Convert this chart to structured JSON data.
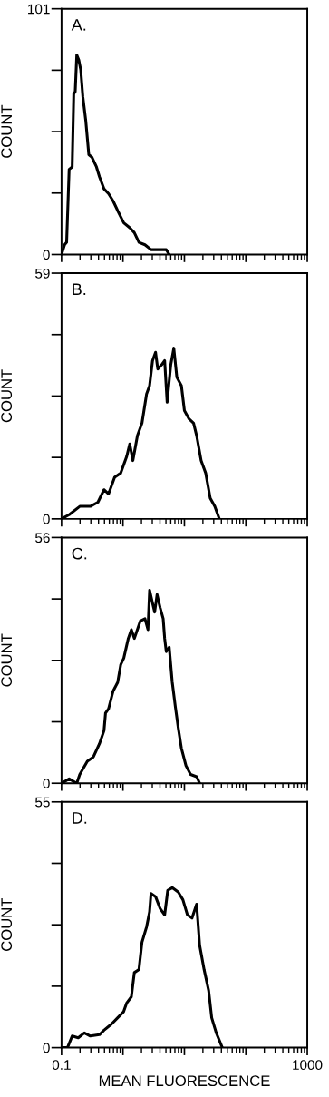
{
  "chart_data": [
    {
      "type": "line",
      "annotations": [
        "A."
      ],
      "ylabel": "COUNT",
      "log": "x",
      "xlim": [
        0.1,
        1000
      ],
      "xticks": [
        {
          "value": 0.1,
          "label": null
        },
        {
          "value": 1,
          "label": null
        },
        {
          "value": 10,
          "label": null
        },
        {
          "value": 100,
          "label": null
        },
        {
          "value": 1000,
          "label": null
        }
      ],
      "ylim": [
        0,
        101
      ],
      "yticks": [
        0,
        {
          "value": 25.25,
          "label": null
        },
        {
          "value": 50.5,
          "label": null
        },
        {
          "value": 75.75,
          "label": null
        },
        101
      ],
      "tick_labels": "y",
      "marker": "none",
      "line_style": "solid",
      "grid": false,
      "legend": false,
      "series": [
        {
          "color": "#000000",
          "x": [
            0.1,
            0.112,
            0.121,
            0.133,
            0.149,
            0.158,
            0.167,
            0.177,
            0.191,
            0.205,
            0.222,
            0.248,
            0.278,
            0.312,
            0.37,
            0.414,
            0.491,
            0.583,
            0.691,
            0.82,
            1.03,
            1.29,
            1.53,
            1.82,
            2.28,
            2.86,
            5.06,
            5.66
          ],
          "values": [
            0,
            4,
            5,
            35,
            36,
            66,
            67,
            82,
            80,
            76,
            65,
            55,
            41,
            40,
            36,
            32,
            27,
            25,
            22,
            18,
            13,
            11,
            9,
            5,
            4,
            2,
            2,
            0
          ]
        }
      ]
    },
    {
      "type": "line",
      "annotations": [
        "B."
      ],
      "ylabel": "COUNT",
      "log": "x",
      "xlim": [
        0.1,
        1000
      ],
      "xticks": [
        {
          "value": 0.1,
          "label": null
        },
        {
          "value": 1,
          "label": null
        },
        {
          "value": 10,
          "label": null
        },
        {
          "value": 100,
          "label": null
        },
        {
          "value": 1000,
          "label": null
        }
      ],
      "ylim": [
        0,
        59
      ],
      "yticks": [
        0,
        {
          "value": 14.75,
          "label": null
        },
        {
          "value": 29.5,
          "label": null
        },
        {
          "value": 44.25,
          "label": null
        },
        59
      ],
      "tick_labels": "y",
      "marker": "none",
      "line_style": "solid",
      "grid": false,
      "legend": false,
      "series": [
        {
          "color": "#000000",
          "x": [
            0.1,
            0.133,
            0.198,
            0.294,
            0.391,
            0.491,
            0.583,
            0.731,
            0.918,
            1.15,
            1.29,
            1.45,
            1.72,
            2.04,
            2.42,
            2.71,
            3.03,
            3.39,
            3.68,
            4.26,
            4.77,
            5.23,
            6.0,
            6.72,
            7.53,
            8.93,
            10.0,
            11.9,
            14.1,
            15.8,
            18.7,
            22.2,
            26.3,
            31.2,
            37.0
          ],
          "values": [
            0,
            1,
            3,
            3,
            4,
            7,
            6,
            10,
            11,
            15,
            18,
            14,
            20,
            23,
            30,
            32,
            38,
            40,
            36,
            37,
            38,
            28,
            37,
            41,
            34,
            32,
            26,
            24,
            23,
            20,
            14,
            11,
            5,
            3,
            0
          ]
        }
      ]
    },
    {
      "type": "line",
      "annotations": [
        "C."
      ],
      "ylabel": "COUNT",
      "log": "x",
      "xlim": [
        0.1,
        1000
      ],
      "xticks": [
        {
          "value": 0.1,
          "label": null
        },
        {
          "value": 1,
          "label": null
        },
        {
          "value": 10,
          "label": null
        },
        {
          "value": 100,
          "label": null
        },
        {
          "value": 1000,
          "label": null
        }
      ],
      "ylim": [
        0,
        56
      ],
      "yticks": [
        0,
        {
          "value": 14,
          "label": null
        },
        {
          "value": 28,
          "label": null
        },
        {
          "value": 42,
          "label": null
        },
        56
      ],
      "tick_labels": "y",
      "marker": "none",
      "line_style": "solid",
      "grid": false,
      "legend": false,
      "series": [
        {
          "color": "#000000",
          "x": [
            0.1,
            0.133,
            0.177,
            0.198,
            0.263,
            0.33,
            0.414,
            0.491,
            0.52,
            0.583,
            0.691,
            0.82,
            0.918,
            1.03,
            1.22,
            1.37,
            1.53,
            1.92,
            2.28,
            2.55,
            2.71,
            3.03,
            3.28,
            3.59,
            4.03,
            4.51,
            4.77,
            5.06,
            5.66,
            6.34,
            7.11,
            7.96,
            8.93,
            10.6,
            12.6,
            15.8,
            17.7
          ],
          "values": [
            0,
            1,
            0,
            2,
            5,
            6,
            9,
            12,
            16,
            17,
            21,
            23,
            27,
            28.5,
            33,
            35,
            33,
            37,
            37.5,
            35,
            44,
            41,
            39,
            43,
            40,
            37.5,
            33,
            30,
            31,
            23,
            17.5,
            12.5,
            8,
            4,
            2,
            1.5,
            0
          ]
        }
      ]
    },
    {
      "type": "line",
      "annotations": [
        "D."
      ],
      "ylabel": "COUNT",
      "xlabel": "MEAN FLUORESCENCE",
      "log": "x",
      "xlim": [
        0.1,
        1000
      ],
      "xticks": [
        0.1,
        {
          "value": 1,
          "label": null
        },
        {
          "value": 10,
          "label": null
        },
        {
          "value": 100,
          "label": null
        },
        1000
      ],
      "ylim": [
        0,
        55
      ],
      "yticks": [
        0,
        {
          "value": 13.75,
          "label": null
        },
        {
          "value": 27.5,
          "label": null
        },
        {
          "value": 41.25,
          "label": null
        },
        55
      ],
      "marker": "none",
      "line_style": "solid",
      "grid": false,
      "legend": false,
      "series": [
        {
          "color": "#000000",
          "x": [
            0.1,
            0.125,
            0.149,
            0.187,
            0.235,
            0.294,
            0.414,
            0.491,
            0.653,
            0.82,
            1.02,
            1.15,
            1.37,
            1.53,
            1.82,
            2.04,
            2.42,
            2.71,
            2.86,
            3.39,
            4.03,
            4.77,
            5.35,
            6.34,
            7.96,
            9.45,
            11.2,
            13.3,
            15.8,
            17.7,
            20.9,
            24.8,
            27.8,
            33.0,
            41.4
          ],
          "values": [
            0,
            0,
            2.6,
            2.2,
            3.3,
            2.6,
            2.9,
            3.9,
            5.3,
            6.7,
            8,
            10,
            11.4,
            16.8,
            17.5,
            23.6,
            27,
            30.4,
            34.5,
            33.8,
            31.1,
            29.7,
            35.2,
            35.8,
            34.8,
            33.1,
            29.7,
            29,
            32.1,
            22.9,
            17.5,
            12.8,
            6.7,
            3.3,
            0
          ]
        }
      ]
    }
  ]
}
